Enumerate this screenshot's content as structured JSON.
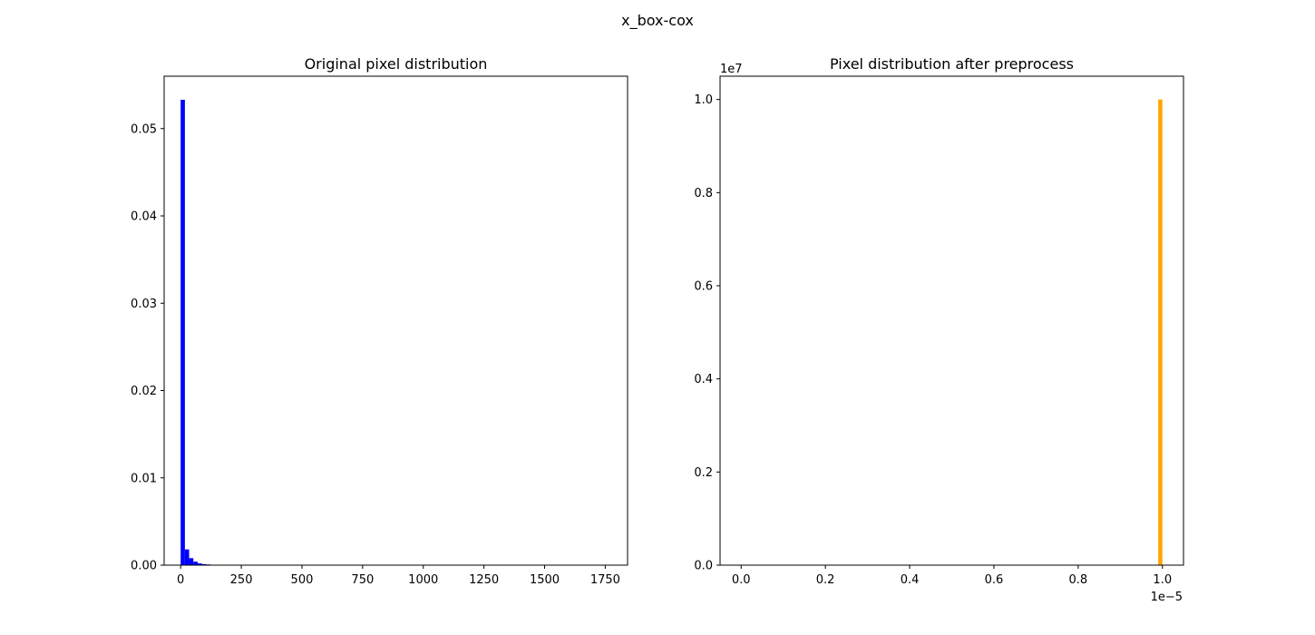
{
  "figure": {
    "suptitle": "x_box-cox"
  },
  "chart_data": [
    {
      "type": "bar",
      "title": "Original pixel distribution",
      "xlabel": "",
      "ylabel": "",
      "color": "#0000ff",
      "xlim": [
        -68,
        1842
      ],
      "ylim": [
        0,
        0.056
      ],
      "xticks": [
        0,
        250,
        500,
        750,
        1000,
        1250,
        1500,
        1750
      ],
      "xtick_labels": [
        "0",
        "250",
        "500",
        "750",
        "1000",
        "1250",
        "1500",
        "1750"
      ],
      "yticks": [
        0.0,
        0.01,
        0.02,
        0.03,
        0.04,
        0.05
      ],
      "ytick_labels": [
        "0.00",
        "0.01",
        "0.02",
        "0.03",
        "0.04",
        "0.05"
      ],
      "bin_width": 17.5,
      "bins": [
        {
          "x0": 0.0,
          "value": 0.0533
        },
        {
          "x0": 17.5,
          "value": 0.0018
        },
        {
          "x0": 35.0,
          "value": 0.0008
        },
        {
          "x0": 52.5,
          "value": 0.0004
        },
        {
          "x0": 70.0,
          "value": 0.0002
        },
        {
          "x0": 87.5,
          "value": 0.00012
        },
        {
          "x0": 105.0,
          "value": 8e-05
        },
        {
          "x0": 122.5,
          "value": 5e-05
        },
        {
          "x0": 140.0,
          "value": 3e-05
        }
      ],
      "grid": false
    },
    {
      "type": "bar",
      "title": "Pixel distribution after preprocess",
      "xlabel": "",
      "ylabel": "",
      "color": "#ffa500",
      "offset_label_x": "1e−5",
      "offset_label_y": "1e7",
      "xlim": [
        -0.05,
        1.05
      ],
      "ylim": [
        0,
        1.05
      ],
      "xticks": [
        0.0,
        0.2,
        0.4,
        0.6,
        0.8,
        1.0
      ],
      "xtick_labels": [
        "0.0",
        "0.2",
        "0.4",
        "0.6",
        "0.8",
        "1.0"
      ],
      "yticks": [
        0.0,
        0.2,
        0.4,
        0.6,
        0.8,
        1.0
      ],
      "ytick_labels": [
        "0.0",
        "0.2",
        "0.4",
        "0.6",
        "0.8",
        "1.0"
      ],
      "bin_width": 0.01,
      "bins": [
        {
          "x0": 0.99,
          "value": 1.0
        }
      ],
      "grid": false
    }
  ]
}
